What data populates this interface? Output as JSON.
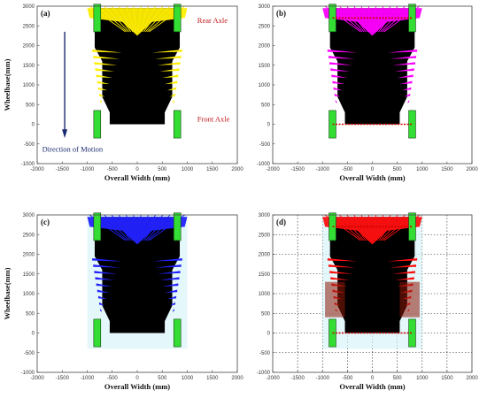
{
  "figure": {
    "background": "#ffffff",
    "vehicle_body_color": "#000000",
    "wheel_color": "#33dd33",
    "wheel_marker_color": "#cc0000"
  },
  "chart_data": [
    {
      "type": "scatter",
      "panel": "(a)",
      "xlabel": "Overall Width (mm)",
      "ylabel": "Wheelbase(mm)",
      "xlim": [
        -2000,
        2000
      ],
      "ylim": [
        -1000,
        3000
      ],
      "xticks": [
        -2000,
        -1500,
        -1000,
        -500,
        0,
        500,
        1000,
        1500,
        2000
      ],
      "yticks": [
        -1000,
        -500,
        0,
        500,
        1000,
        1500,
        2000,
        2500,
        3000
      ],
      "grid": false,
      "trace_color": "#ffee00",
      "annotations": [
        "Rear Axle",
        "Front Axle",
        "Direction of Motion"
      ]
    },
    {
      "type": "scatter",
      "panel": "(b)",
      "xlabel": "Overall Width (mm)",
      "ylabel": "",
      "xlim": [
        -2000,
        2000
      ],
      "ylim": [
        -1000,
        3000
      ],
      "xticks": [
        -2000,
        -1500,
        -1000,
        -500,
        0,
        500,
        1000,
        1500,
        2000
      ],
      "yticks": [
        -1000,
        -500,
        0,
        500,
        1000,
        1500,
        2000,
        2500,
        3000
      ],
      "grid": false,
      "trace_color": "#ff00ff"
    },
    {
      "type": "scatter",
      "panel": "(c)",
      "xlabel": "Overall Width (mm)",
      "ylabel": "Wheelbase(mm)",
      "xlim": [
        -2000,
        2000
      ],
      "ylim": [
        -1000,
        3000
      ],
      "xticks": [
        -2000,
        -1500,
        -1000,
        -500,
        0,
        500,
        1000,
        1500,
        2000
      ],
      "yticks": [
        -1000,
        -500,
        0,
        500,
        1000,
        1500,
        2000,
        2500,
        3000
      ],
      "grid": false,
      "trace_color": "#2222ff"
    },
    {
      "type": "scatter",
      "panel": "(d)",
      "xlabel": "Overall Width (mm)",
      "ylabel": "",
      "xlim": [
        -2000,
        2000
      ],
      "ylim": [
        -1000,
        3000
      ],
      "xticks": [
        -2000,
        -1500,
        -1000,
        -500,
        0,
        500,
        1000,
        1500,
        2000
      ],
      "yticks": [
        -1000,
        -500,
        0,
        500,
        1000,
        1500,
        2000,
        2500,
        3000
      ],
      "grid": true,
      "trace_color": "#ff1010"
    }
  ]
}
